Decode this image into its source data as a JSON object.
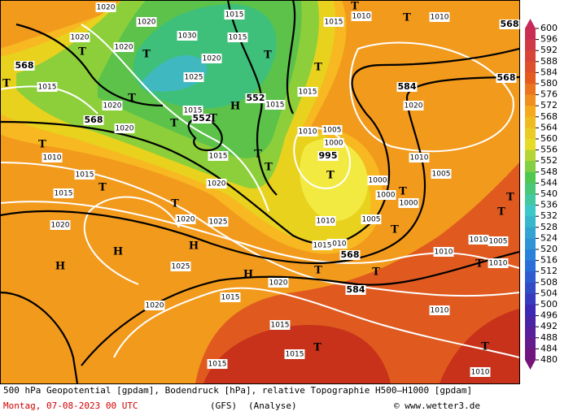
{
  "footer": {
    "description": "500 hPa Geopotential [gpdam], Bodendruck [hPa], relative Topographie H500–H1000 [gpdam]",
    "date": "Montag, 07-08-2023  00 UTC",
    "model": "(GFS)",
    "run": "(Analyse)",
    "credit": "© www.wetter3.de"
  },
  "legend": {
    "ticks": [
      600,
      596,
      592,
      588,
      584,
      580,
      576,
      572,
      568,
      564,
      560,
      556,
      552,
      548,
      544,
      540,
      536,
      532,
      528,
      524,
      520,
      516,
      512,
      508,
      504,
      500,
      496,
      492,
      488,
      484,
      480
    ]
  },
  "map": {
    "labels": [
      "1020",
      "1020",
      "1020",
      "1020",
      "1030",
      "1020",
      "1025",
      "1015",
      "1020",
      "1020",
      "1015",
      "1020",
      "1020",
      "1025",
      "1025",
      "1020",
      "1015",
      "1015",
      "1010",
      "1015",
      "1015",
      "1015",
      "1015",
      "1015",
      "1010",
      "1005",
      "1000",
      "995",
      "1000",
      "1000",
      "1000",
      "1005",
      "1010",
      "1010",
      "1015",
      "568",
      "584",
      "1020",
      "1015",
      "1020",
      "1015",
      "1015",
      "1015",
      "1010",
      "1010",
      "1010",
      "1005",
      "1010",
      "1010",
      "1010",
      "1005",
      "1020",
      "1015",
      "1010",
      "1010",
      "584",
      "568",
      "568",
      "568",
      "568",
      "552",
      "552",
      "T",
      "T",
      "T",
      "T",
      "T",
      "T",
      "T",
      "T",
      "T",
      "T",
      "T",
      "T",
      "T",
      "T",
      "T",
      "T",
      "T",
      "T",
      "T",
      "T",
      "T",
      "T",
      "T",
      "T",
      "T",
      "H",
      "H",
      "H",
      "H",
      "H"
    ]
  }
}
